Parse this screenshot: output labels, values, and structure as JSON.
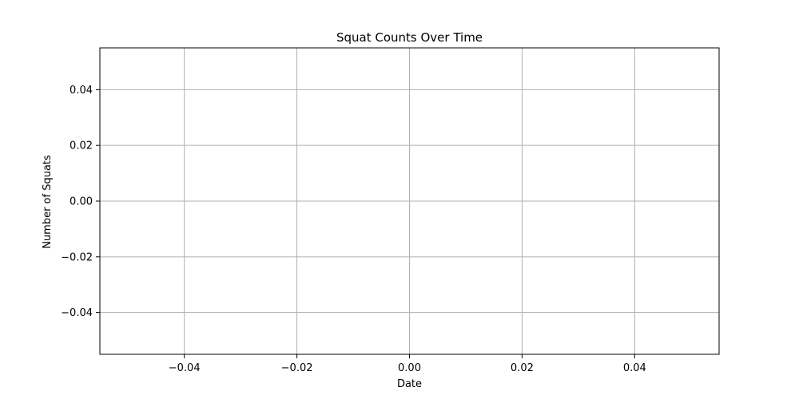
{
  "chart_data": {
    "type": "line",
    "title": "Squat Counts Over Time",
    "xlabel": "Date",
    "ylabel": "Number of Squats",
    "x": [],
    "y": [],
    "xlim": [
      -0.055,
      0.055
    ],
    "ylim": [
      -0.055,
      0.055
    ],
    "x_ticks": [
      -0.04,
      -0.02,
      0.0,
      0.02,
      0.04
    ],
    "x_tick_labels": [
      "−0.04",
      "−0.02",
      "0.00",
      "0.02",
      "0.04"
    ],
    "y_ticks": [
      -0.04,
      -0.02,
      0.0,
      0.02,
      0.04
    ],
    "y_tick_labels": [
      "−0.04",
      "−0.02",
      "0.00",
      "0.02",
      "0.04"
    ],
    "grid": true,
    "colors": {
      "grid": "#b0b0b0",
      "axes": "#000000",
      "background": "#ffffff"
    }
  }
}
